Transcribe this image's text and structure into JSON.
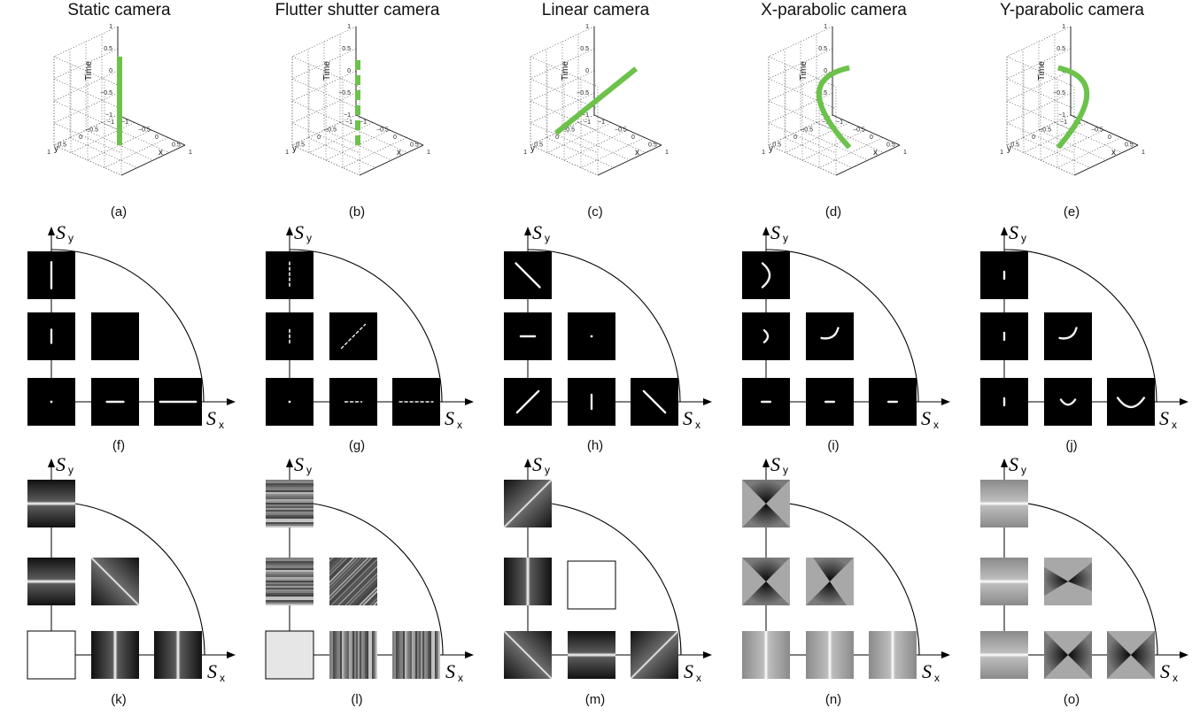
{
  "columns": [
    {
      "title": "Static camera",
      "top_caption": "(a)",
      "mid_caption": "(f)",
      "bot_caption": "(k)",
      "curve": "static",
      "psf": [
        [
          {
            "k": "vbar",
            "s": 0.55
          }
        ],
        [
          {
            "k": "vbar",
            "s": 0.28
          },
          null
        ],
        [
          {
            "k": "dot"
          },
          {
            "k": "hbar",
            "s": 0.35
          },
          {
            "k": "hbar",
            "s": 0.75
          }
        ]
      ],
      "mtf": [
        [
          {
            "k": "hband",
            "bg": "dark"
          }
        ],
        [
          {
            "k": "hband",
            "bg": "dark"
          },
          {
            "k": "diag",
            "bg": "dark"
          }
        ],
        [
          {
            "k": "blank"
          },
          {
            "k": "vband",
            "bg": "dark"
          },
          {
            "k": "vband",
            "bg": "dark"
          }
        ]
      ]
    },
    {
      "title": "Flutter shutter camera",
      "top_caption": "(b)",
      "mid_caption": "(g)",
      "bot_caption": "(l)",
      "curve": "flutter",
      "psf": [
        [
          {
            "k": "vdash",
            "s": 0.55
          }
        ],
        [
          {
            "k": "vdash",
            "s": 0.28
          },
          {
            "k": "ddash",
            "s": 0.5
          }
        ],
        [
          {
            "k": "dot"
          },
          {
            "k": "hdash",
            "s": 0.35
          },
          {
            "k": "hdash",
            "s": 0.7
          }
        ]
      ],
      "mtf": [
        [
          {
            "k": "hstripes"
          }
        ],
        [
          {
            "k": "hstripes"
          },
          {
            "k": "dstripes"
          }
        ],
        [
          {
            "k": "lightblank"
          },
          {
            "k": "vstripes"
          },
          {
            "k": "vstripes"
          }
        ]
      ]
    },
    {
      "title": "Linear camera",
      "top_caption": "(c)",
      "mid_caption": "(h)",
      "bot_caption": "(m)",
      "curve": "linear",
      "psf": [
        [
          {
            "k": "diag2",
            "s": 0.5
          }
        ],
        [
          {
            "k": "hbar",
            "s": 0.3
          },
          {
            "k": "dot"
          }
        ],
        [
          {
            "k": "diag1",
            "s": 0.45
          },
          {
            "k": "vbar",
            "s": 0.3
          },
          {
            "k": "diag2",
            "s": 0.45
          }
        ]
      ],
      "mtf": [
        [
          {
            "k": "diagup",
            "bg": "dark"
          }
        ],
        [
          {
            "k": "vband",
            "bg": "dark"
          },
          {
            "k": "blank"
          }
        ],
        [
          {
            "k": "diagdown",
            "bg": "dark"
          },
          {
            "k": "hband",
            "bg": "dark"
          },
          {
            "k": "diagup",
            "bg": "dark"
          }
        ]
      ]
    },
    {
      "title": "X-parabolic camera",
      "top_caption": "(d)",
      "mid_caption": "(i)",
      "bot_caption": "(n)",
      "curve": "xpar",
      "psf": [
        [
          {
            "k": "arcR",
            "s": 0.5
          }
        ],
        [
          {
            "k": "arcR",
            "s": 0.25
          },
          {
            "k": "arcD",
            "s": 0.35
          }
        ],
        [
          {
            "k": "hbar",
            "s": 0.18
          },
          {
            "k": "hbar",
            "s": 0.18
          },
          {
            "k": "hbar",
            "s": 0.18
          }
        ]
      ],
      "mtf": [
        [
          {
            "k": "bowV"
          }
        ],
        [
          {
            "k": "bowV"
          },
          {
            "k": "bowV2"
          }
        ],
        [
          {
            "k": "vband",
            "bg": "gray"
          },
          {
            "k": "vband",
            "bg": "gray"
          },
          {
            "k": "vband",
            "bg": "gray"
          }
        ]
      ]
    },
    {
      "title": "Y-parabolic camera",
      "top_caption": "(e)",
      "mid_caption": "(j)",
      "bot_caption": "(o)",
      "curve": "ypar",
      "psf": [
        [
          {
            "k": "vbar",
            "s": 0.15
          }
        ],
        [
          {
            "k": "vbar",
            "s": 0.15
          },
          {
            "k": "arcD",
            "s": 0.35
          }
        ],
        [
          {
            "k": "vbar",
            "s": 0.15
          },
          {
            "k": "arcU",
            "s": 0.3
          },
          {
            "k": "arcU",
            "s": 0.55
          }
        ]
      ],
      "mtf": [
        [
          {
            "k": "hband",
            "bg": "gray"
          }
        ],
        [
          {
            "k": "hband",
            "bg": "gray"
          },
          {
            "k": "bowH2"
          }
        ],
        [
          {
            "k": "hband",
            "bg": "gray"
          },
          {
            "k": "bowH"
          },
          {
            "k": "bowH"
          }
        ]
      ]
    }
  ],
  "axes3d": {
    "zlabel": "Time",
    "xlabel": "x",
    "ylabel": "y",
    "zticks": [
      "1",
      "0.5",
      "0",
      "−0.5",
      "−1"
    ],
    "xticks": [
      "−1",
      "−0.5",
      "0",
      "0.5",
      "1"
    ],
    "yticks": [
      "1",
      "0.5",
      "0",
      "−0.5",
      "−1"
    ]
  },
  "quadrant": {
    "sy_main": "S",
    "sy_sub": "y",
    "sx_main": "S",
    "sx_sub": "x"
  },
  "colors": {
    "curve": "#6cc24a",
    "kernel_bg": "#000000",
    "axis": "#000000"
  }
}
